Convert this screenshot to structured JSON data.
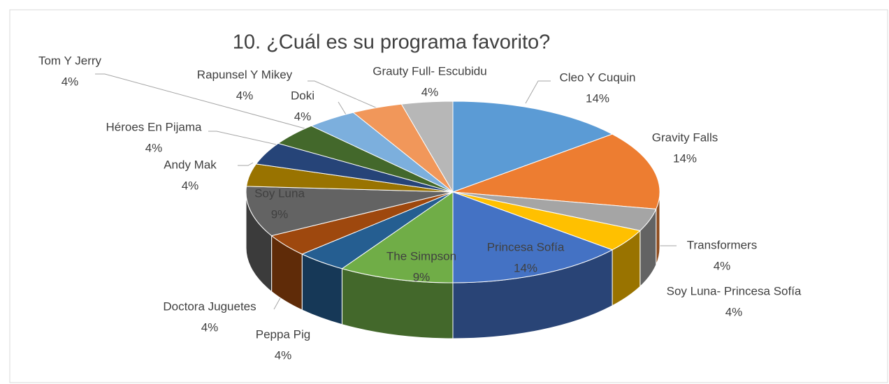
{
  "chart_data": {
    "type": "pie3d",
    "title": "10. ¿Cuál es su programa favorito?",
    "categories": [
      "Cleo Y Cuquin",
      "Gravity  Falls",
      "Soy Luna- Princesa Sofía",
      "Transformers",
      "Princesa Sofía",
      "The Simpson",
      "Peppa Pig",
      "Doctora Juguetes",
      "Soy Luna",
      "Andy Mak",
      "Héroes  En Pijama",
      "Tom Y Jerry",
      "Doki",
      "Rapunsel Y Mikey",
      "Grauty Full- Escubidu"
    ],
    "values": [
      14,
      14,
      4,
      4,
      14,
      9,
      4,
      4,
      9,
      4,
      4,
      4,
      4,
      4,
      4
    ],
    "value_labels": [
      "14%",
      "14%",
      "4%",
      "4%",
      "14%",
      "9%",
      "4%",
      "4%",
      "9%",
      "4%",
      "4%",
      "4%",
      "4%",
      "4%",
      "4%"
    ],
    "colors": [
      "#5b9bd5",
      "#ed7d31",
      "#a5a5a5",
      "#ffc000",
      "#4472c4",
      "#70ad47",
      "#255e91",
      "#9e480e",
      "#636363",
      "#997300",
      "#264478",
      "#43682b",
      "#7cafdd",
      "#f1975a",
      "#b7b7b7"
    ]
  }
}
